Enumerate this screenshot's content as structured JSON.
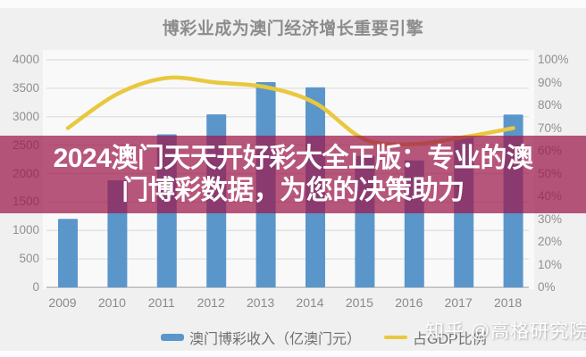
{
  "title": "博彩业成为澳门经济增长重要引擎",
  "overlay": {
    "line1": "2024澳门天天开好彩大全正版：专业的澳",
    "line2": "门博彩数据，为您的决策助力",
    "band_color": "rgba(157,22,74,0.72)",
    "text_color": "#ffffff"
  },
  "watermark": {
    "text": "知乎 @高格研究院"
  },
  "colors": {
    "bar": "#5B96CB",
    "line": "#E9C83F",
    "grid": "#e3e3e3",
    "baseline": "#c6c6c6",
    "axis_text": "#909090"
  },
  "chart_data": {
    "type": "bar+line combo",
    "title": "博彩业成为澳门经济增长重要引擎",
    "categories": [
      "2009",
      "2010",
      "2011",
      "2012",
      "2013",
      "2014",
      "2015",
      "2016",
      "2017",
      "2018"
    ],
    "series": [
      {
        "name": "澳门博彩收入（亿澳门元）",
        "type": "bar",
        "axis": "left",
        "color": "#5B96CB",
        "values": [
          1203,
          1883,
          2691,
          3041,
          3607,
          3515,
          2309,
          2232,
          2658,
          3038
        ]
      },
      {
        "name": "占GDP比例",
        "type": "line",
        "axis": "right",
        "color": "#E9C83F",
        "unit": "%",
        "values": [
          70,
          85,
          92,
          90,
          88,
          81,
          65,
          63,
          66,
          70
        ]
      }
    ],
    "y_left": {
      "min": 0,
      "max": 4000,
      "step": 500,
      "ticks": [
        "0",
        "500",
        "1000",
        "1500",
        "2000",
        "2500",
        "3000",
        "3500",
        "4000"
      ]
    },
    "y_right": {
      "min": 0,
      "max": 100,
      "step": 10,
      "suffix": "%",
      "ticks": [
        "0%",
        "10%",
        "20%",
        "30%",
        "40%",
        "50%",
        "60%",
        "70%",
        "80%",
        "90%",
        "100%"
      ]
    },
    "grid": "horizontal",
    "legend_position": "bottom"
  }
}
